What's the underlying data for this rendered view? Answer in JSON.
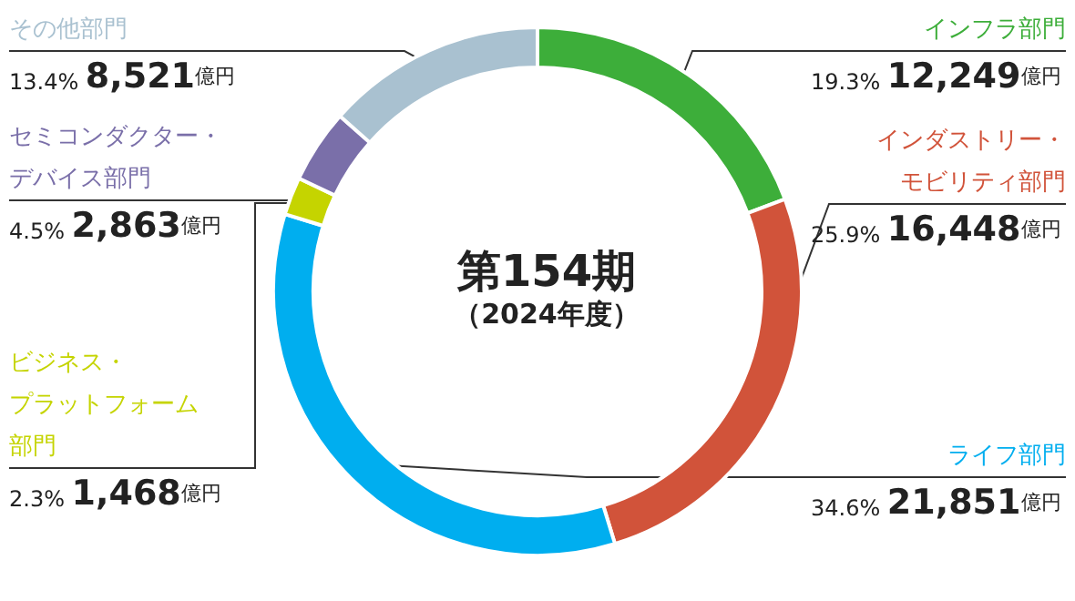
{
  "chart_data": {
    "type": "donut",
    "title": "第154期",
    "subtitle": "（2024年度）",
    "categories": [
      "インフラ部門",
      "インダストリー・モビリティ部門",
      "ライフ部門",
      "ビジネス・プラットフォーム部門",
      "セミコンダクター・デバイス部門",
      "その他部門"
    ],
    "values": [
      12249,
      16448,
      21851,
      1468,
      2863,
      8521
    ],
    "colors": [
      "#3dae3a",
      "#d1533a",
      "#00aeef",
      "#c5d400",
      "#7a6fa9",
      "#a9c1d0"
    ],
    "value_labels": [
      "19.3% 12,249億円",
      "25.9% 16,448億円",
      "34.6% 21,851億円",
      "2.3% 1,468億円",
      "4.5% 2,863億円",
      "13.4% 8,521億円"
    ],
    "legend": false
  }
}
